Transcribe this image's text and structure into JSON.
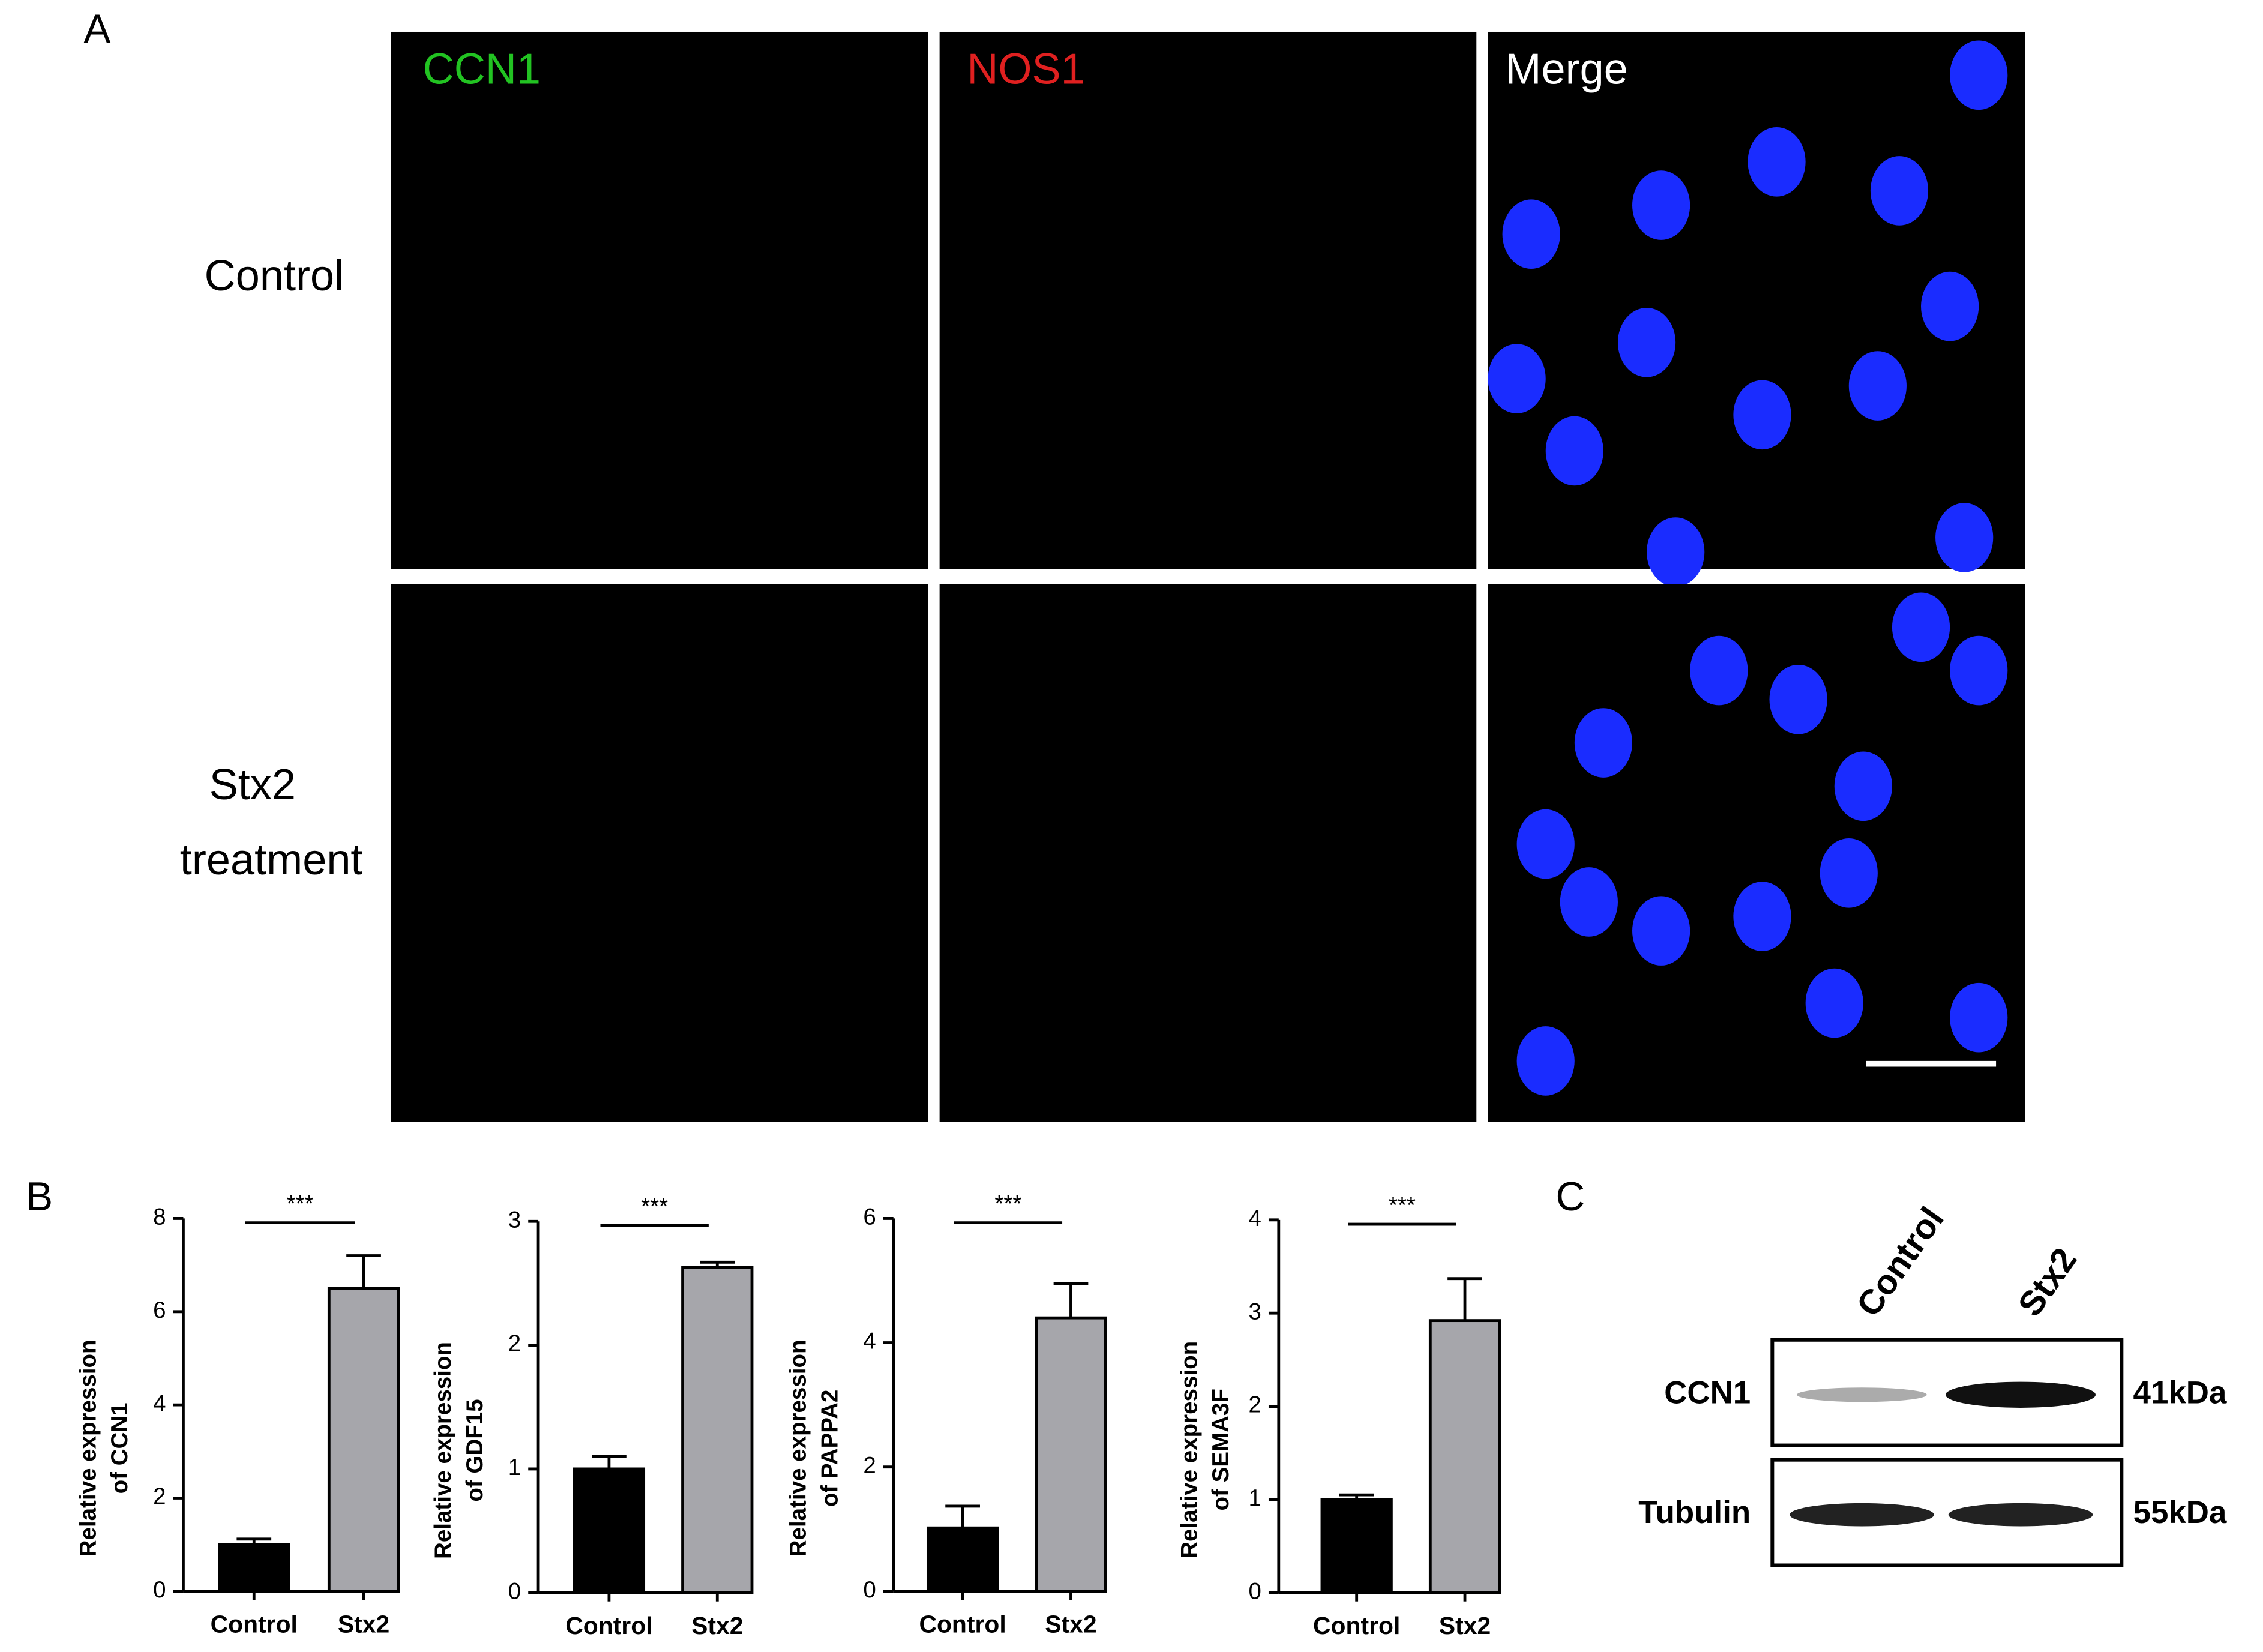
{
  "panel_labels": [
    "A",
    "B",
    "C"
  ],
  "microscopy": {
    "channels": [
      {
        "name": "CCN1",
        "color": "#22c322"
      },
      {
        "name": "NOS1",
        "color": "#e02020"
      },
      {
        "name": "Merge",
        "color": "#ffffff"
      }
    ],
    "rows": [
      {
        "lines": [
          "Control"
        ]
      },
      {
        "lines": [
          "Stx2",
          "treatment"
        ]
      }
    ]
  },
  "chart_data": [
    {
      "type": "bar",
      "y_label": [
        "Relative expression",
        "of CCN1"
      ],
      "categories": [
        "Control",
        "Stx2"
      ],
      "values": [
        1.0,
        6.5
      ],
      "errors": [
        0.12,
        0.7
      ],
      "colors": [
        "#000000",
        "#a6a6ab"
      ],
      "ylim": [
        0,
        8
      ],
      "yticks": [
        0,
        2,
        4,
        6,
        8
      ],
      "significance": "***"
    },
    {
      "type": "bar",
      "y_label": [
        "Relative expression",
        "of GDF15"
      ],
      "categories": [
        "Control",
        "Stx2"
      ],
      "values": [
        1.0,
        2.63
      ],
      "errors": [
        0.1,
        0.04
      ],
      "colors": [
        "#000000",
        "#a6a6ab"
      ],
      "ylim": [
        0,
        3
      ],
      "yticks": [
        0,
        1,
        2,
        3
      ],
      "significance": "***"
    },
    {
      "type": "bar",
      "y_label": [
        "Relative expression",
        "of PAPPA2"
      ],
      "categories": [
        "Control",
        "Stx2"
      ],
      "values": [
        1.02,
        4.4
      ],
      "errors": [
        0.35,
        0.55
      ],
      "colors": [
        "#000000",
        "#a6a6ab"
      ],
      "ylim": [
        0,
        6
      ],
      "yticks": [
        0,
        2,
        4,
        6
      ],
      "significance": "***"
    },
    {
      "type": "bar",
      "y_label": [
        "Relative expression",
        "of SEMA3F"
      ],
      "categories": [
        "Control",
        "Stx2"
      ],
      "values": [
        1.0,
        2.92
      ],
      "errors": [
        0.05,
        0.45
      ],
      "colors": [
        "#000000",
        "#a6a6ab"
      ],
      "ylim": [
        0,
        4
      ],
      "yticks": [
        0,
        1,
        2,
        3,
        4
      ],
      "significance": "***"
    }
  ],
  "blot": {
    "lanes": [
      "Control",
      "Stx2"
    ],
    "rows": [
      {
        "protein": "CCN1",
        "size": "41kDa"
      },
      {
        "protein": "Tubulin",
        "size": "55kDa"
      }
    ]
  }
}
